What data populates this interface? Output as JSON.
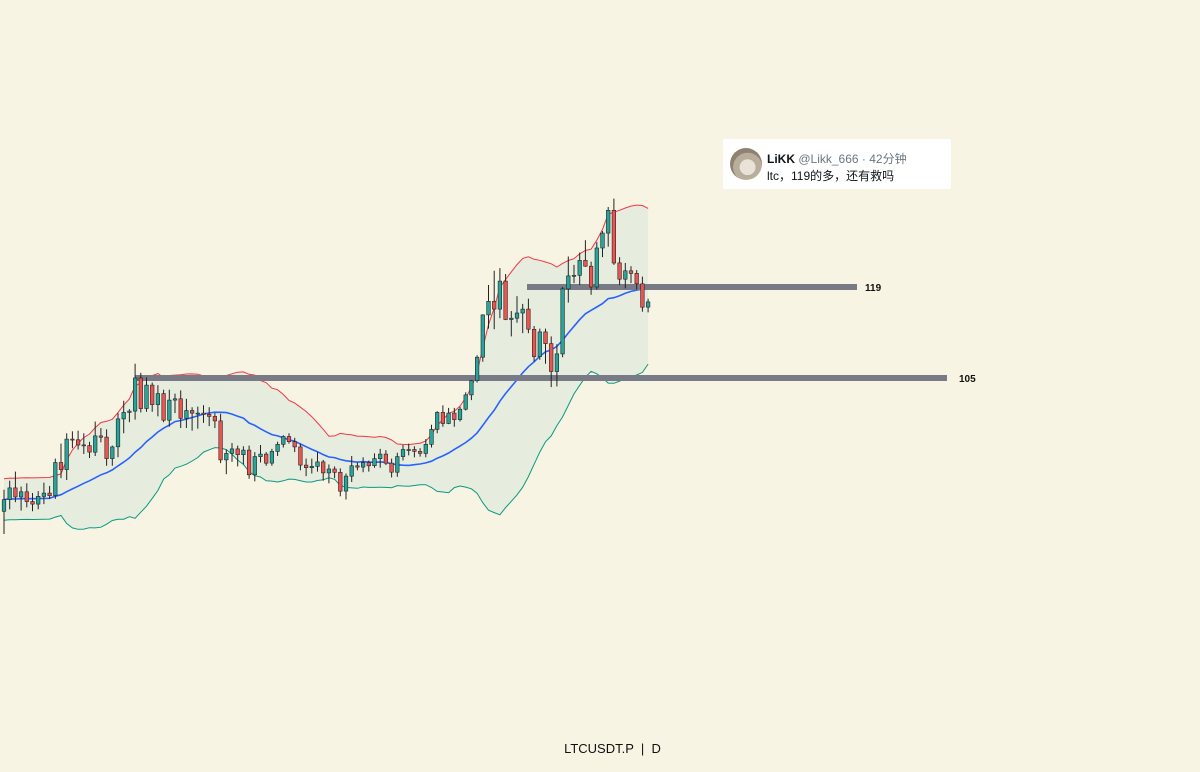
{
  "symbol": "LTCUSDT.P",
  "timeframe": "D",
  "tweet": {
    "name": "LiKK",
    "handle": "@Likk_666",
    "time": "42分钟",
    "text": "ltc，119的多，还有救吗"
  },
  "colors": {
    "background": "#f8f4e3",
    "up_candle": "#26a69a",
    "down_candle": "#ef5350",
    "basis_line": "#2962ff",
    "upper_band": "#f23645",
    "lower_band": "#089981",
    "band_fill": "#e3ebde",
    "level_line": "#787b86"
  },
  "chart_data": {
    "type": "candlestick",
    "indicator": "Bollinger Bands",
    "levels": [
      {
        "price": 119,
        "label": "119"
      },
      {
        "price": 105,
        "label": "105"
      }
    ],
    "candles": [
      [
        84.5,
        87.8,
        81.0,
        86.3
      ],
      [
        86.3,
        89.2,
        84.8,
        88.1
      ],
      [
        88.1,
        90.6,
        85.9,
        86.7
      ],
      [
        86.7,
        88.3,
        84.6,
        87.5
      ],
      [
        87.5,
        88.8,
        85.1,
        86.0
      ],
      [
        86.0,
        87.3,
        84.5,
        85.6
      ],
      [
        85.6,
        87.6,
        84.8,
        86.8
      ],
      [
        86.8,
        88.9,
        85.6,
        87.3
      ],
      [
        87.3,
        88.4,
        86.4,
        86.9
      ],
      [
        86.9,
        92.6,
        86.4,
        92.0
      ],
      [
        92.0,
        94.9,
        89.6,
        90.9
      ],
      [
        90.9,
        96.5,
        89.3,
        95.6
      ],
      [
        95.6,
        96.8,
        94.2,
        95.5
      ],
      [
        95.5,
        96.9,
        94.0,
        94.7
      ],
      [
        94.7,
        96.5,
        93.3,
        94.6
      ],
      [
        94.6,
        95.2,
        92.7,
        93.6
      ],
      [
        93.6,
        98.3,
        93.0,
        96.1
      ],
      [
        96.1,
        97.3,
        95.1,
        95.9
      ],
      [
        95.9,
        97.1,
        91.5,
        92.6
      ],
      [
        92.6,
        94.6,
        91.5,
        94.4
      ],
      [
        94.4,
        99.6,
        92.8,
        98.7
      ],
      [
        98.7,
        101.5,
        96.5,
        99.7
      ],
      [
        99.7,
        100.2,
        98.2,
        99.9
      ],
      [
        99.9,
        107.2,
        98.6,
        105.0
      ],
      [
        105.0,
        105.8,
        99.7,
        100.3
      ],
      [
        100.3,
        105.1,
        99.8,
        103.9
      ],
      [
        103.9,
        104.3,
        99.8,
        100.9
      ],
      [
        100.9,
        103.9,
        99.1,
        102.6
      ],
      [
        102.6,
        103.2,
        98.2,
        98.5
      ],
      [
        98.5,
        103.2,
        97.5,
        101.6
      ],
      [
        101.6,
        102.6,
        99.6,
        101.8
      ],
      [
        101.8,
        103.1,
        97.3,
        98.8
      ],
      [
        98.8,
        101.8,
        97.3,
        100.0
      ],
      [
        100.0,
        100.5,
        96.9,
        99.6
      ],
      [
        99.6,
        100.6,
        97.2,
        99.6
      ],
      [
        99.6,
        100.8,
        98.1,
        99.4
      ],
      [
        99.4,
        100.5,
        97.6,
        99.1
      ],
      [
        99.1,
        99.6,
        97.3,
        98.4
      ],
      [
        98.4,
        99.5,
        91.9,
        92.4
      ],
      [
        92.4,
        94.0,
        90.2,
        93.4
      ],
      [
        93.4,
        95.0,
        92.1,
        94.1
      ],
      [
        94.1,
        94.6,
        91.4,
        93.2
      ],
      [
        93.2,
        94.5,
        91.7,
        93.9
      ],
      [
        93.9,
        94.6,
        89.5,
        90.1
      ],
      [
        90.1,
        93.6,
        89.1,
        92.9
      ],
      [
        92.9,
        94.7,
        92.0,
        93.3
      ],
      [
        93.3,
        93.6,
        91.5,
        91.9
      ],
      [
        91.9,
        94.1,
        91.5,
        93.7
      ],
      [
        93.7,
        95.2,
        93.0,
        94.8
      ],
      [
        94.8,
        96.2,
        94.3,
        96.0
      ],
      [
        96.0,
        96.5,
        94.9,
        95.2
      ],
      [
        95.2,
        95.8,
        93.6,
        94.4
      ],
      [
        94.4,
        94.9,
        90.8,
        91.6
      ],
      [
        91.6,
        92.6,
        89.9,
        91.2
      ],
      [
        91.2,
        92.6,
        90.3,
        91.4
      ],
      [
        91.4,
        93.6,
        90.6,
        92.1
      ],
      [
        92.1,
        92.4,
        89.2,
        90.4
      ],
      [
        90.4,
        91.7,
        88.8,
        91.0
      ],
      [
        91.0,
        91.4,
        89.6,
        90.5
      ],
      [
        90.5,
        91.1,
        86.8,
        87.6
      ],
      [
        87.6,
        90.3,
        86.3,
        89.9
      ],
      [
        89.9,
        93.0,
        89.0,
        91.5
      ],
      [
        91.5,
        92.0,
        90.8,
        91.3
      ],
      [
        91.3,
        92.8,
        90.5,
        92.0
      ],
      [
        92.0,
        92.3,
        90.6,
        91.5
      ],
      [
        91.5,
        93.4,
        91.2,
        92.6
      ],
      [
        92.6,
        94.1,
        91.2,
        93.3
      ],
      [
        93.3,
        93.9,
        91.6,
        91.9
      ],
      [
        91.9,
        92.6,
        89.7,
        90.5
      ],
      [
        90.5,
        93.5,
        89.8,
        92.9
      ],
      [
        92.9,
        94.7,
        92.3,
        94.0
      ],
      [
        94.0,
        94.9,
        93.1,
        94.0
      ],
      [
        94.0,
        94.5,
        92.8,
        93.7
      ],
      [
        93.7,
        94.2,
        92.9,
        93.4
      ],
      [
        93.4,
        95.6,
        92.8,
        94.8
      ],
      [
        94.8,
        97.8,
        94.3,
        97.1
      ],
      [
        97.1,
        99.9,
        96.5,
        99.7
      ],
      [
        99.7,
        100.8,
        97.5,
        98.0
      ],
      [
        98.0,
        100.4,
        97.9,
        99.6
      ],
      [
        99.6,
        100.4,
        97.5,
        98.6
      ],
      [
        98.6,
        100.6,
        98.3,
        100.2
      ],
      [
        100.2,
        102.8,
        100.0,
        102.4
      ],
      [
        102.4,
        104.7,
        101.6,
        104.6
      ],
      [
        104.6,
        108.5,
        104.3,
        108.2
      ],
      [
        108.2,
        114.8,
        107.5,
        114.7
      ],
      [
        114.7,
        119.3,
        112.6,
        116.8
      ],
      [
        116.8,
        121.5,
        112.5,
        115.6
      ],
      [
        115.6,
        121.9,
        114.2,
        119.9
      ],
      [
        119.9,
        121.0,
        113.9,
        114.0
      ],
      [
        114.0,
        115.3,
        111.4,
        114.2
      ],
      [
        114.2,
        117.6,
        113.5,
        115.0
      ],
      [
        115.0,
        116.4,
        111.9,
        115.6
      ],
      [
        115.6,
        117.2,
        111.9,
        112.5
      ],
      [
        112.5,
        113.0,
        107.5,
        108.3
      ],
      [
        108.3,
        112.6,
        107.8,
        112.1
      ],
      [
        112.1,
        112.6,
        107.2,
        110.3
      ],
      [
        110.3,
        111.4,
        103.6,
        106.0
      ],
      [
        106.0,
        110.2,
        103.7,
        108.7
      ],
      [
        108.7,
        119.0,
        108.2,
        118.7
      ],
      [
        118.7,
        123.7,
        116.6,
        120.7
      ],
      [
        120.7,
        122.4,
        119.6,
        120.8
      ],
      [
        120.8,
        124.3,
        119.3,
        123.1
      ],
      [
        123.1,
        126.2,
        122.1,
        122.2
      ],
      [
        122.2,
        122.9,
        117.8,
        119.0
      ],
      [
        119.0,
        125.9,
        118.6,
        125.0
      ],
      [
        125.0,
        127.6,
        123.6,
        127.3
      ],
      [
        127.3,
        131.3,
        125.2,
        130.8
      ],
      [
        130.8,
        132.6,
        122.4,
        122.7
      ],
      [
        122.7,
        123.6,
        119.3,
        120.2
      ],
      [
        120.2,
        122.7,
        118.8,
        121.5
      ],
      [
        121.5,
        122.2,
        119.6,
        121.1
      ],
      [
        121.1,
        121.6,
        118.6,
        119.5
      ],
      [
        119.5,
        120.6,
        115.2,
        115.9
      ],
      [
        115.9,
        117.2,
        115.1,
        116.7
      ]
    ]
  }
}
